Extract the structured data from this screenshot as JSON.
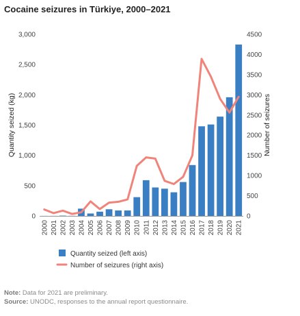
{
  "title": "Cocaine seizures in Türkiye, 2000–2021",
  "note_label": "Note:",
  "note_text": "Data for 2021 are preliminary.",
  "source_label": "Source:",
  "source_text": "UNODC, responses to the annual report questionnaire.",
  "colors": {
    "bars": "#3a7fc3",
    "line": "#f0837a"
  },
  "chart_data": {
    "type": "bar",
    "categories": [
      "2000",
      "2001",
      "2002",
      "2003",
      "2004",
      "2005",
      "2006",
      "2007",
      "2008",
      "2009",
      "2010",
      "2011",
      "2012",
      "2013",
      "2014",
      "2015",
      "2016",
      "2017",
      "2018",
      "2019",
      "2020",
      "2021"
    ],
    "series": [
      {
        "name": "Quantity seized (left axis)",
        "type": "bar",
        "axis": "left",
        "values": [
          1,
          1,
          5,
          2,
          120,
          40,
          70,
          110,
          90,
          90,
          310,
          590,
          470,
          450,
          390,
          560,
          840,
          1480,
          1510,
          1640,
          1960,
          2830
        ]
      },
      {
        "name": "Number of seizures (right axis)",
        "type": "line",
        "axis": "right",
        "values": [
          160,
          70,
          130,
          50,
          90,
          360,
          170,
          330,
          350,
          410,
          1240,
          1450,
          1420,
          870,
          790,
          970,
          1500,
          3890,
          3450,
          2900,
          2560,
          2950
        ]
      }
    ],
    "ylabel_left": "Quantity seized (kg)",
    "ylabel_right": "Number of seizures",
    "ylim_left": [
      0,
      3000
    ],
    "ylim_right": [
      0,
      4500
    ],
    "yticks_left": [
      "0",
      "500",
      "1,000",
      "1,500",
      "2,000",
      "2,500",
      "3,000"
    ],
    "yticks_right": [
      "0",
      "500",
      "1000",
      "1500",
      "2000",
      "2500",
      "3000",
      "3500",
      "4000",
      "4500"
    ],
    "grid": false,
    "legend_position": "bottom"
  }
}
